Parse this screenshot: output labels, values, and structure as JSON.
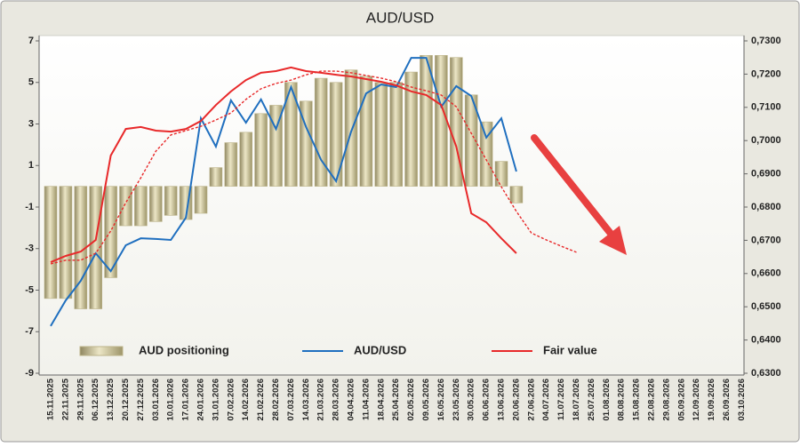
{
  "chart_data": {
    "type": "combo",
    "title": "AUD/USD",
    "categories": [
      "15.11.2025",
      "22.11.2025",
      "29.11.2025",
      "06.12.2025",
      "13.12.2025",
      "20.12.2025",
      "27.12.2025",
      "03.01.2026",
      "10.01.2026",
      "17.01.2026",
      "24.01.2026",
      "31.01.2026",
      "07.02.2026",
      "14.02.2026",
      "21.02.2026",
      "28.02.2026",
      "07.03.2026",
      "14.03.2026",
      "21.03.2026",
      "28.03.2026",
      "04.04.2026",
      "11.04.2026",
      "18.04.2026",
      "25.04.2026",
      "02.05.2026",
      "09.05.2026",
      "16.05.2026",
      "23.05.2026",
      "30.05.2026",
      "06.06.2026",
      "13.06.2026",
      "20.06.2026",
      "27.06.2026",
      "04.07.2026",
      "11.07.2026",
      "18.07.2026",
      "25.07.2026",
      "01.08.2026",
      "08.08.2026",
      "15.08.2026",
      "22.08.2026",
      "29.08.2026",
      "05.09.2026",
      "12.09.2026",
      "19.09.2026",
      "26.09.2026",
      "03.10.2026"
    ],
    "series": [
      {
        "name": "AUD positioning",
        "type": "bar",
        "color": "#bdb48a",
        "values": [
          -5.4,
          -5.4,
          -5.9,
          -5.9,
          -4.4,
          -1.9,
          -1.9,
          -1.7,
          -1.4,
          -1.6,
          -1.3,
          0.9,
          2.1,
          2.6,
          3.5,
          3.9,
          5.0,
          4.1,
          5.2,
          5.0,
          5.6,
          5.3,
          5.0,
          5.0,
          5.5,
          6.3,
          6.3,
          6.2,
          4.4,
          3.1,
          1.2,
          -0.8,
          null,
          null,
          null,
          null,
          null,
          null,
          null,
          null,
          null,
          null,
          null,
          null,
          null,
          null,
          null
        ]
      },
      {
        "name": "AUD/USD",
        "type": "line",
        "axis": "y2",
        "color": "#1f6fbf",
        "values": [
          0.6442,
          0.6519,
          0.6578,
          0.6661,
          0.6607,
          0.6685,
          0.6706,
          0.6704,
          0.6701,
          0.6768,
          0.7067,
          0.6982,
          0.7121,
          0.7054,
          0.7124,
          0.7035,
          0.7161,
          0.7041,
          0.6942,
          0.6878,
          0.7027,
          0.7142,
          0.7169,
          0.7161,
          0.7249,
          0.7249,
          0.7102,
          0.7164,
          0.7134,
          0.7009,
          0.7067,
          0.6907,
          null,
          null,
          null,
          null,
          null,
          null,
          null,
          null,
          null,
          null,
          null,
          null,
          null,
          null,
          null
        ]
      },
      {
        "name": "Fair value",
        "type": "line",
        "axis": "y2",
        "color": "#e8292a",
        "values": [
          0.6634,
          0.6653,
          0.6666,
          0.6701,
          0.6955,
          0.7035,
          0.7041,
          0.703,
          0.7027,
          0.7035,
          0.7059,
          0.7107,
          0.7148,
          0.7182,
          0.7204,
          0.7209,
          0.722,
          0.7209,
          0.7204,
          0.7198,
          0.7193,
          0.7185,
          0.7177,
          0.7166,
          0.7148,
          0.7137,
          0.7107,
          0.6982,
          0.6781,
          0.6754,
          0.6706,
          0.6661,
          null,
          null,
          null,
          null,
          null,
          null,
          null,
          null,
          null,
          null,
          null,
          null,
          null,
          null,
          null
        ]
      },
      {
        "type": "line",
        "axis": "y2",
        "color": "#e8292a",
        "dashed": true,
        "values": [
          0.6629,
          0.664,
          0.664,
          0.6661,
          0.6728,
          0.6813,
          0.6888,
          0.6968,
          0.7017,
          0.703,
          0.7043,
          0.7062,
          0.7083,
          0.7124,
          0.7156,
          0.7172,
          0.7182,
          0.7198,
          0.7209,
          0.7209,
          0.7204,
          0.7196,
          0.7188,
          0.7177,
          0.7161,
          0.715,
          0.7137,
          0.7102,
          0.7022,
          0.6942,
          0.6861,
          0.6787,
          0.6722,
          0.6701,
          0.6682,
          0.6664,
          null,
          null,
          null,
          null,
          null,
          null,
          null,
          null,
          null,
          null,
          null
        ]
      }
    ],
    "ylim": [
      -9,
      7
    ],
    "yticks": [
      7,
      5,
      3,
      1,
      -1,
      -3,
      -5,
      -7,
      -9
    ],
    "y2lim": [
      0.63,
      0.73
    ],
    "y2ticks": [
      {
        "value": 0.73,
        "label": "0,7300"
      },
      {
        "value": 0.72,
        "label": "0,7200"
      },
      {
        "value": 0.71,
        "label": "0,7100"
      },
      {
        "value": 0.7,
        "label": "0,7000"
      },
      {
        "value": 0.69,
        "label": "0,6900"
      },
      {
        "value": 0.68,
        "label": "0,6800"
      },
      {
        "value": 0.67,
        "label": "0,6700"
      },
      {
        "value": 0.66,
        "label": "0,6600"
      },
      {
        "value": 0.65,
        "label": "0,6500"
      },
      {
        "value": 0.64,
        "label": "0,6400"
      },
      {
        "value": 0.63,
        "label": "0,6300"
      }
    ],
    "grid": false
  }
}
